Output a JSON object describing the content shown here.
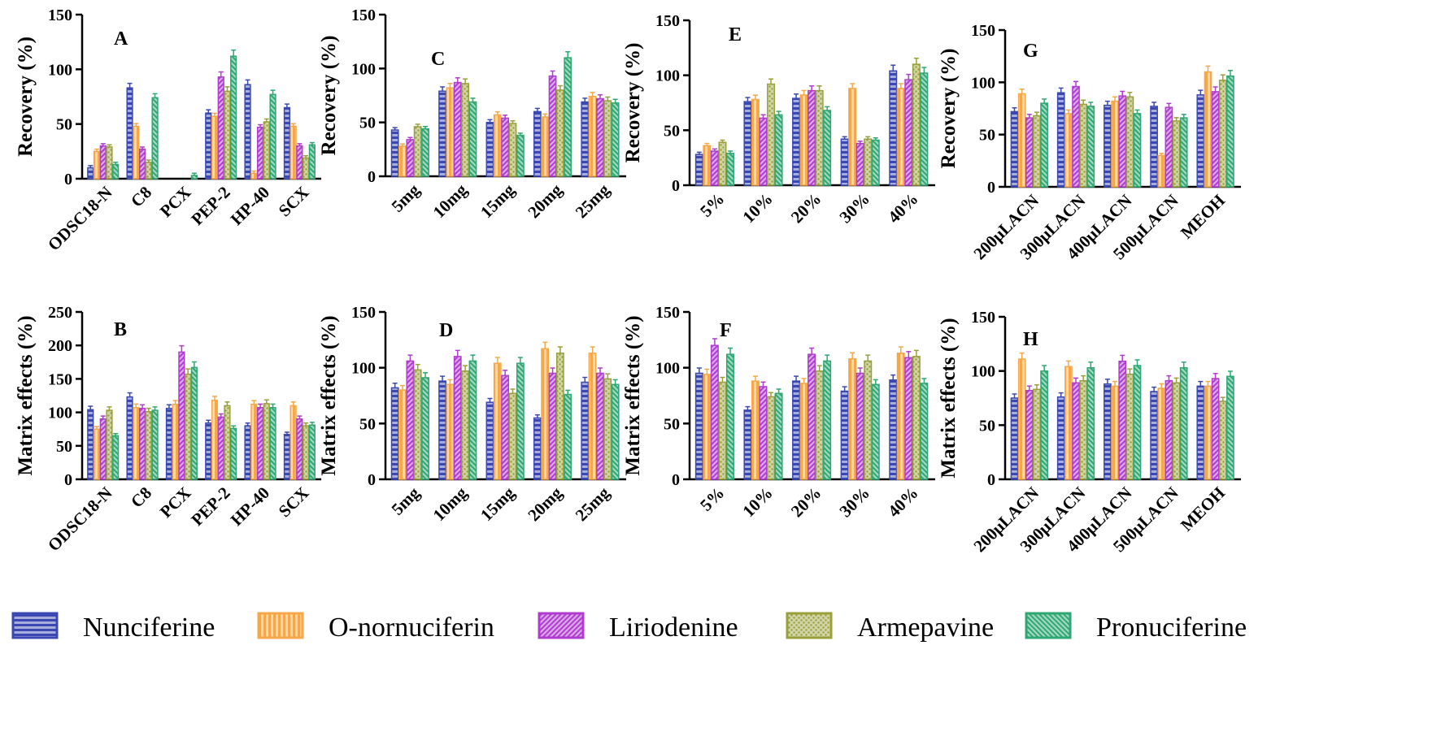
{
  "colors": {
    "Nunciferine": "#3b48b2",
    "O-nornuciferin": "#f5a84a",
    "Liriodenine": "#b03ccf",
    "Armepavine": "#99a03a",
    "Pronuciferine": "#2ea772"
  },
  "legend": [
    {
      "name": "Nunciferine",
      "pattern": "horizontal-stripes"
    },
    {
      "name": "O-nornuciferin",
      "pattern": "vertical-stripes"
    },
    {
      "name": "Liriodenine",
      "pattern": "diagonal-stripes"
    },
    {
      "name": "Armepavine",
      "pattern": "dots"
    },
    {
      "name": "Pronuciferine",
      "pattern": "back-diagonal-stripes"
    }
  ],
  "chart_data": [
    {
      "panel": "A",
      "type": "bar",
      "ylabel": "Recovery (%)",
      "ylim": [
        0,
        150
      ],
      "yticks": [
        0,
        50,
        100,
        150
      ],
      "categories": [
        "ODSC18-N",
        "C8",
        "PCX",
        "PEP-2",
        "HP-40",
        "SCX"
      ],
      "series": [
        {
          "name": "Nunciferine",
          "values": [
            10,
            83,
            0,
            60,
            86,
            65
          ]
        },
        {
          "name": "O-nornuciferin",
          "values": [
            25,
            48,
            0,
            57,
            5,
            48
          ]
        },
        {
          "name": "Liriodenine",
          "values": [
            30,
            27,
            0,
            93,
            47,
            30
          ]
        },
        {
          "name": "Armepavine",
          "values": [
            29,
            15,
            0,
            80,
            52,
            19
          ]
        },
        {
          "name": "Pronuciferine",
          "values": [
            13,
            74,
            3,
            112,
            77,
            31
          ]
        }
      ]
    },
    {
      "panel": "C",
      "type": "bar",
      "ylabel": "Recovery (%)",
      "ylim": [
        0,
        150
      ],
      "yticks": [
        0,
        50,
        100,
        150
      ],
      "categories": [
        "5mg",
        "10mg",
        "15mg",
        "20mg",
        "25mg"
      ],
      "series": [
        {
          "name": "Nunciferine",
          "values": [
            43,
            79,
            50,
            60,
            69
          ]
        },
        {
          "name": "O-nornuciferin",
          "values": [
            28,
            82,
            57,
            55,
            74
          ]
        },
        {
          "name": "Liriodenine",
          "values": [
            34,
            87,
            54,
            93,
            72
          ]
        },
        {
          "name": "Armepavine",
          "values": [
            46,
            86,
            49,
            80,
            70
          ]
        },
        {
          "name": "Pronuciferine",
          "values": [
            44,
            69,
            38,
            110,
            68
          ]
        }
      ]
    },
    {
      "panel": "E",
      "type": "bar",
      "ylabel": "Recovery (%)",
      "ylim": [
        0,
        150
      ],
      "yticks": [
        0,
        50,
        100,
        150
      ],
      "categories": [
        "5%",
        "10%",
        "20%",
        "30%",
        "40%"
      ],
      "series": [
        {
          "name": "Nunciferine",
          "values": [
            28,
            76,
            79,
            42,
            104
          ]
        },
        {
          "name": "O-nornuciferin",
          "values": [
            36,
            78,
            82,
            88,
            88
          ]
        },
        {
          "name": "Liriodenine",
          "values": [
            31,
            61,
            86,
            38,
            96
          ]
        },
        {
          "name": "Armepavine",
          "values": [
            39,
            92,
            86,
            42,
            110
          ]
        },
        {
          "name": "Pronuciferine",
          "values": [
            29,
            64,
            68,
            41,
            102
          ]
        }
      ]
    },
    {
      "panel": "G",
      "type": "bar",
      "ylabel": "Recovery (%)",
      "ylim": [
        0,
        150
      ],
      "yticks": [
        0,
        50,
        100,
        150
      ],
      "categories": [
        "200μLACN",
        "300μLACN",
        "400μLACN",
        "500μLACN",
        "MEOH"
      ],
      "series": [
        {
          "name": "Nunciferine",
          "values": [
            72,
            90,
            78,
            77,
            88
          ]
        },
        {
          "name": "O-nornuciferin",
          "values": [
            89,
            70,
            82,
            30,
            110
          ]
        },
        {
          "name": "Liriodenine",
          "values": [
            66,
            96,
            87,
            76,
            91
          ]
        },
        {
          "name": "Armepavine",
          "values": [
            68,
            79,
            86,
            63,
            102
          ]
        },
        {
          "name": "Pronuciferine",
          "values": [
            80,
            77,
            70,
            66,
            106
          ]
        }
      ]
    },
    {
      "panel": "B",
      "type": "bar",
      "ylabel": "Matrix effects (%)",
      "ylim": [
        0,
        250
      ],
      "yticks": [
        0,
        50,
        100,
        150,
        200,
        250
      ],
      "categories": [
        "ODSC18-N",
        "C8",
        "PCX",
        "PEP-2",
        "HP-40",
        "SCX"
      ],
      "series": [
        {
          "name": "Nunciferine",
          "values": [
            104,
            123,
            106,
            84,
            80,
            67
          ]
        },
        {
          "name": "O-nornuciferin",
          "values": [
            75,
            107,
            112,
            118,
            112,
            110
          ]
        },
        {
          "name": "Liriodenine",
          "values": [
            90,
            106,
            190,
            93,
            107,
            90
          ]
        },
        {
          "name": "Armepavine",
          "values": [
            103,
            101,
            157,
            110,
            113,
            80
          ]
        },
        {
          "name": "Pronuciferine",
          "values": [
            65,
            103,
            167,
            76,
            107,
            81
          ]
        }
      ]
    },
    {
      "panel": "D",
      "type": "bar",
      "ylabel": "Matrix effects (%)",
      "ylim": [
        0,
        150
      ],
      "yticks": [
        0,
        50,
        100,
        150
      ],
      "categories": [
        "5mg",
        "10mg",
        "15mg",
        "20mg",
        "25mg"
      ],
      "series": [
        {
          "name": "Nunciferine",
          "values": [
            82,
            88,
            69,
            55,
            87
          ]
        },
        {
          "name": "O-nornuciferin",
          "values": [
            80,
            85,
            104,
            117,
            113
          ]
        },
        {
          "name": "Liriodenine",
          "values": [
            106,
            110,
            93,
            95,
            95
          ]
        },
        {
          "name": "Armepavine",
          "values": [
            98,
            97,
            77,
            113,
            90
          ]
        },
        {
          "name": "Pronuciferine",
          "values": [
            91,
            106,
            104,
            76,
            85
          ]
        }
      ]
    },
    {
      "panel": "F",
      "type": "bar",
      "ylabel": "Matrix effects (%)",
      "ylim": [
        0,
        150
      ],
      "yticks": [
        0,
        50,
        100,
        150
      ],
      "categories": [
        "5%",
        "10%",
        "20%",
        "30%",
        "40%"
      ],
      "series": [
        {
          "name": "Nunciferine",
          "values": [
            95,
            62,
            88,
            79,
            89
          ]
        },
        {
          "name": "O-nornuciferin",
          "values": [
            94,
            88,
            86,
            108,
            113
          ]
        },
        {
          "name": "Liriodenine",
          "values": [
            120,
            83,
            112,
            95,
            109
          ]
        },
        {
          "name": "Armepavine",
          "values": [
            87,
            74,
            97,
            106,
            110
          ]
        },
        {
          "name": "Pronuciferine",
          "values": [
            112,
            77,
            106,
            85,
            86
          ]
        }
      ]
    },
    {
      "panel": "H",
      "type": "bar",
      "ylabel": "Matrix effects (%)",
      "ylim": [
        0,
        150
      ],
      "yticks": [
        0,
        50,
        100,
        150
      ],
      "categories": [
        "200μLACN",
        "300μLACN",
        "400μLACN",
        "500μLACN",
        "MEOH"
      ],
      "series": [
        {
          "name": "Nunciferine",
          "values": [
            75,
            76,
            88,
            81,
            86
          ]
        },
        {
          "name": "O-nornuciferin",
          "values": [
            111,
            104,
            86,
            84,
            86
          ]
        },
        {
          "name": "Liriodenine",
          "values": [
            82,
            89,
            109,
            91,
            93
          ]
        },
        {
          "name": "Armepavine",
          "values": [
            83,
            91,
            97,
            89,
            72
          ]
        },
        {
          "name": "Pronuciferine",
          "values": [
            100,
            103,
            105,
            103,
            95
          ]
        }
      ]
    }
  ]
}
